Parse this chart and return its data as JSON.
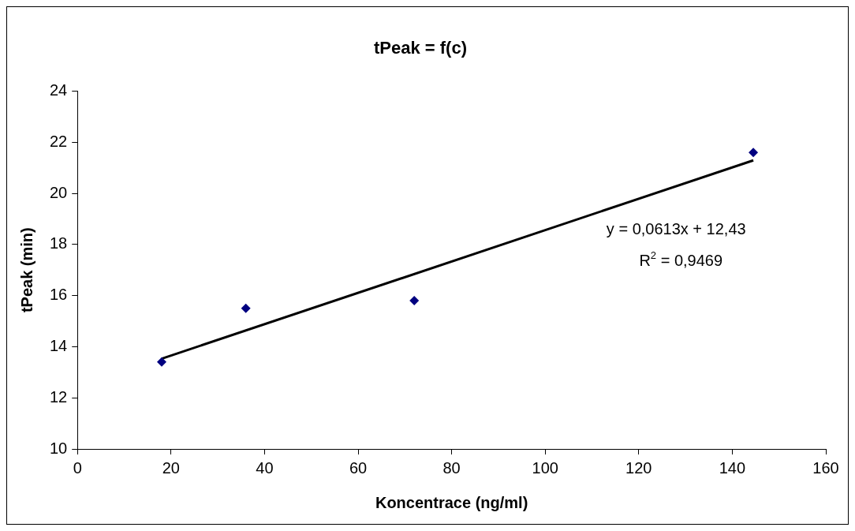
{
  "chart_data": {
    "type": "scatter",
    "title": "tPeak = f(c)",
    "xlabel": "Koncentrace (ng/ml)",
    "ylabel": "tPeak (min)",
    "series": [
      {
        "type": "scatter",
        "color": "#000080",
        "x": [
          18,
          36,
          72,
          144.5
        ],
        "values": [
          13.4,
          15.5,
          15.8,
          21.6
        ],
        "marker": "diamond"
      },
      {
        "type": "line",
        "color": "#000000",
        "x": [
          18,
          144.5
        ],
        "values": [
          13.53,
          21.29
        ],
        "marker": "none",
        "line_style": "solid"
      }
    ],
    "xlim": [
      0,
      160
    ],
    "xticks": [
      0,
      20,
      40,
      60,
      80,
      100,
      120,
      140,
      160
    ],
    "ylim": [
      10,
      24
    ],
    "yticks": [
      10,
      12,
      14,
      16,
      18,
      20,
      22,
      24
    ],
    "grid": false,
    "legend": false,
    "annotations": [
      "y = 0,0613x + 12,43",
      "R$^{2}$ = 0,9469"
    ]
  }
}
